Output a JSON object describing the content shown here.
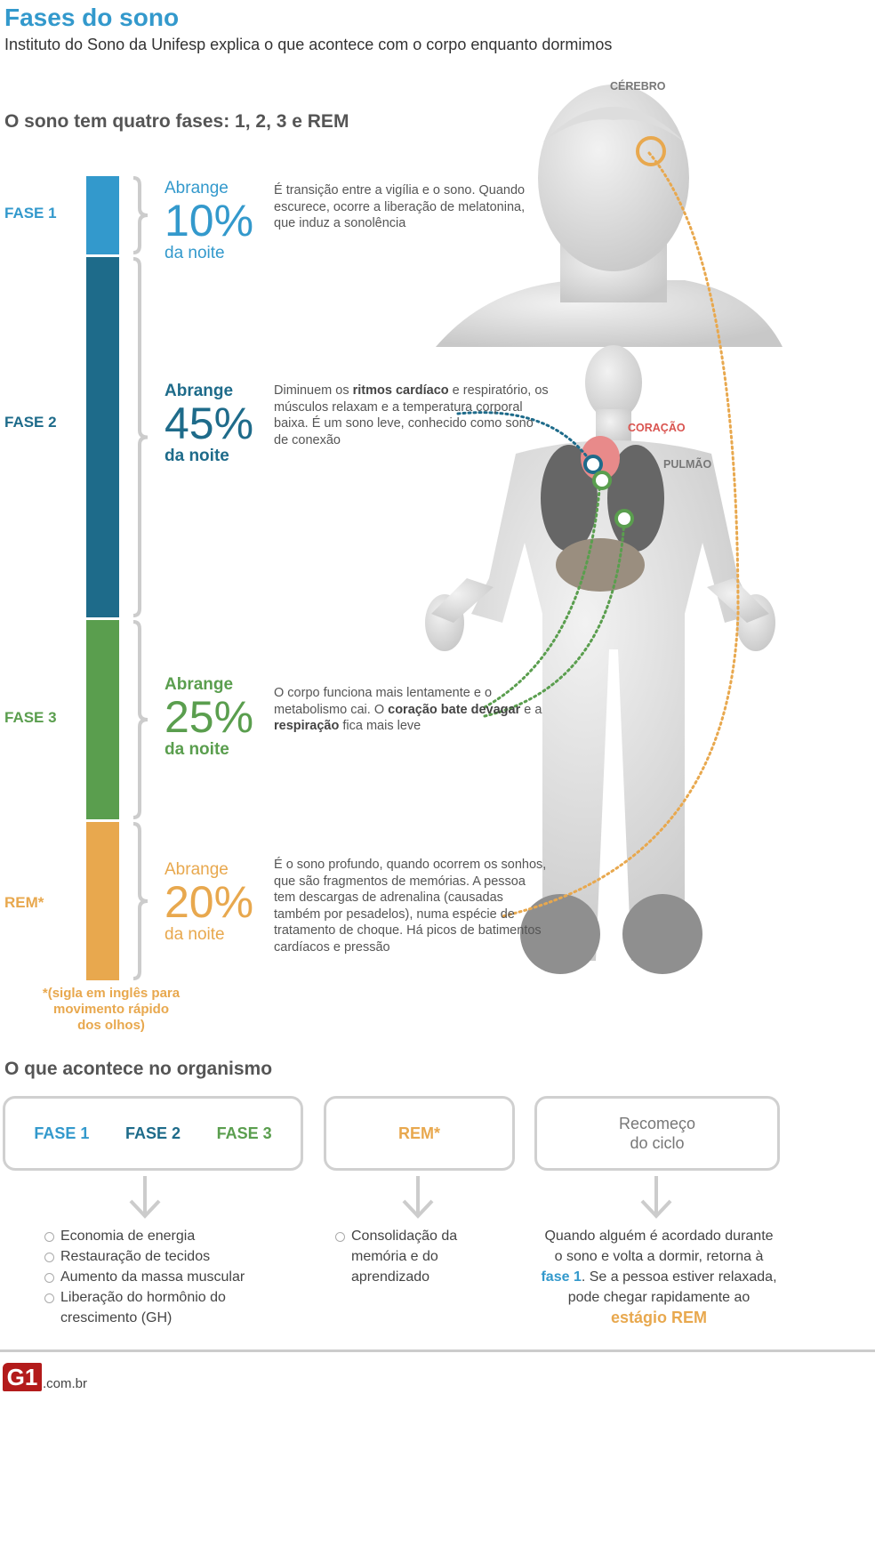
{
  "title": "Fases do sono",
  "subtitle": "Instituto do Sono da Unifesp explica o que acontece com o corpo enquanto dormimos",
  "section1": "O sono tem quatro fases: 1, 2, 3 e REM",
  "body_labels": {
    "brain": "CÉREBRO",
    "heart": "CORAÇÃO",
    "lung": "PULMÃO"
  },
  "colors": {
    "fase1": "#3399cc",
    "fase2": "#1e6b8a",
    "fase3": "#5a9e4e",
    "rem": "#e8a84e"
  },
  "phases": [
    {
      "label": "FASE 1",
      "abrange": "Abrange",
      "percent": "10%",
      "value": 10,
      "da_noite": "da noite",
      "desc": [
        "É transição entre a vigília e o sono. Quando escurece, ocorre a liberação de melatonina, que induz a sonolência"
      ]
    },
    {
      "label": "FASE 2",
      "abrange": "Abrange",
      "percent": "45%",
      "value": 45,
      "da_noite": "da noite",
      "desc": [
        "Diminuem os ",
        "ritmos cardíaco",
        " e respiratório, os músculos relaxam e a temperatura corporal baixa. É um sono leve, conhecido como sono de conexão"
      ]
    },
    {
      "label": "FASE 3",
      "abrange": "Abrange",
      "percent": "25%",
      "value": 25,
      "da_noite": "da noite",
      "desc": [
        "O corpo funciona mais lentamente e o metabolismo cai. O ",
        "coração bate devagar",
        " e a ",
        "respiração",
        " fica mais leve"
      ]
    },
    {
      "label": "REM*",
      "abrange": "Abrange",
      "percent": "20%",
      "value": 20,
      "da_noite": "da noite",
      "desc": [
        "É o sono profundo, quando ocorrem os sonhos, que são fragmentos de memórias. A pessoa tem descargas de adrenalina (causadas também por pesadelos), numa espécie de tratamento de choque. Há picos de batimentos cardíacos e pressão"
      ]
    }
  ],
  "footnote": "*(sigla em inglês para movimento rápido dos olhos)",
  "section2": "O que acontece no organismo",
  "boxes": {
    "fase1": "FASE 1",
    "fase2": "FASE 2",
    "fase3": "FASE 3",
    "rem": "REM*",
    "recomeco": "Recomeço do ciclo"
  },
  "list_fases": [
    "Economia de energia",
    "Restauração de tecidos",
    "Aumento da massa muscular",
    "Liberação do hormônio do crescimento (GH)"
  ],
  "list_rem": [
    "Consolidação da memória e do aprendizado"
  ],
  "recomeco": {
    "t1": "Quando alguém é acordado durante o sono e volta a dormir, retorna à ",
    "h1": "fase 1",
    "t2": ". Se a pessoa estiver relaxada, pode chegar rapidamente ao ",
    "h2": "estágio REM"
  },
  "logo": {
    "mark": "G1",
    "domain": ".com.br"
  }
}
